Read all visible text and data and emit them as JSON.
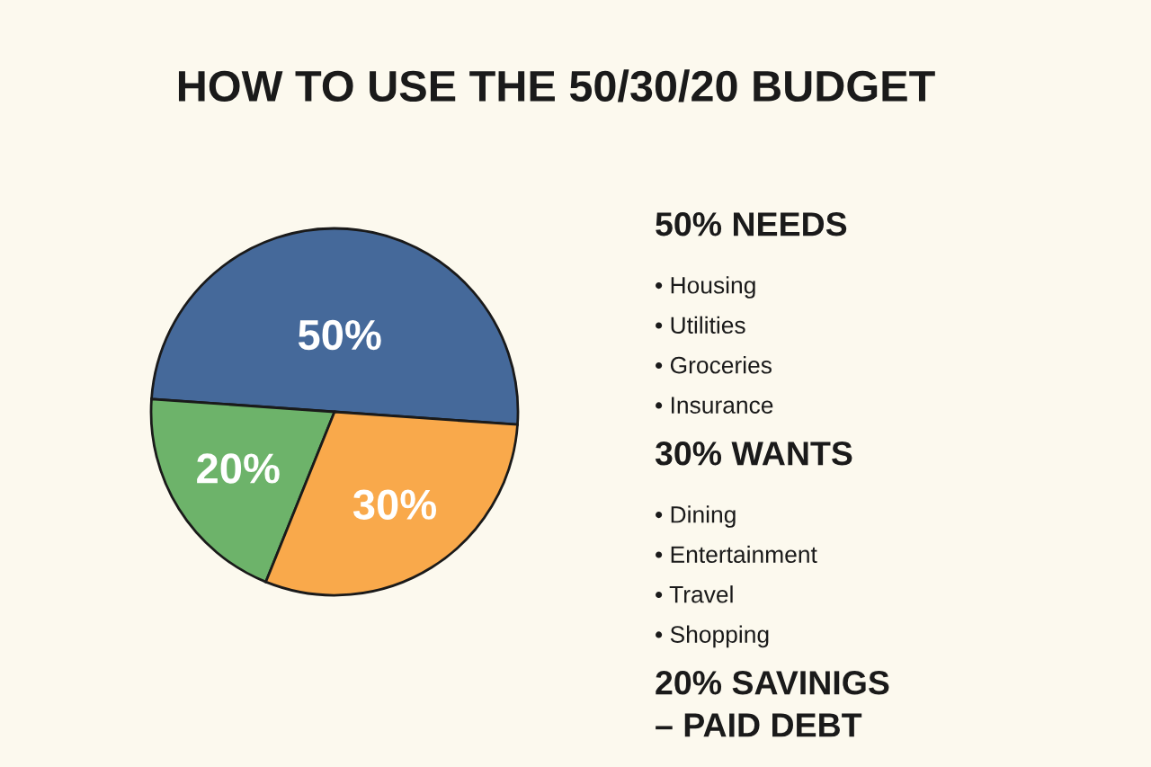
{
  "chart_data": [
    {
      "type": "pie",
      "title": "HOW TO USE THE 50/30/20 BUDGET",
      "categories": [
        null,
        null,
        null
      ],
      "values": [
        50,
        20,
        30
      ],
      "colors": [
        "#45699a",
        "#6db36a",
        "#f9a94b"
      ],
      "value_labels": [
        "50%",
        "20%",
        "30%"
      ]
    },
    {
      "type": "other",
      "title": "50% NEEDS",
      "annotations": [
        "• Housing",
        "• Utilities",
        "• Groceries",
        "• Insurance"
      ]
    },
    {
      "type": "other",
      "title": "30% WANTS",
      "annotations": [
        "• Dining",
        "• Entertainment",
        "• Travel",
        "• Shopping"
      ]
    },
    {
      "type": "other",
      "title": "20% SAVINIGS\n– PAID DEBT"
    }
  ]
}
